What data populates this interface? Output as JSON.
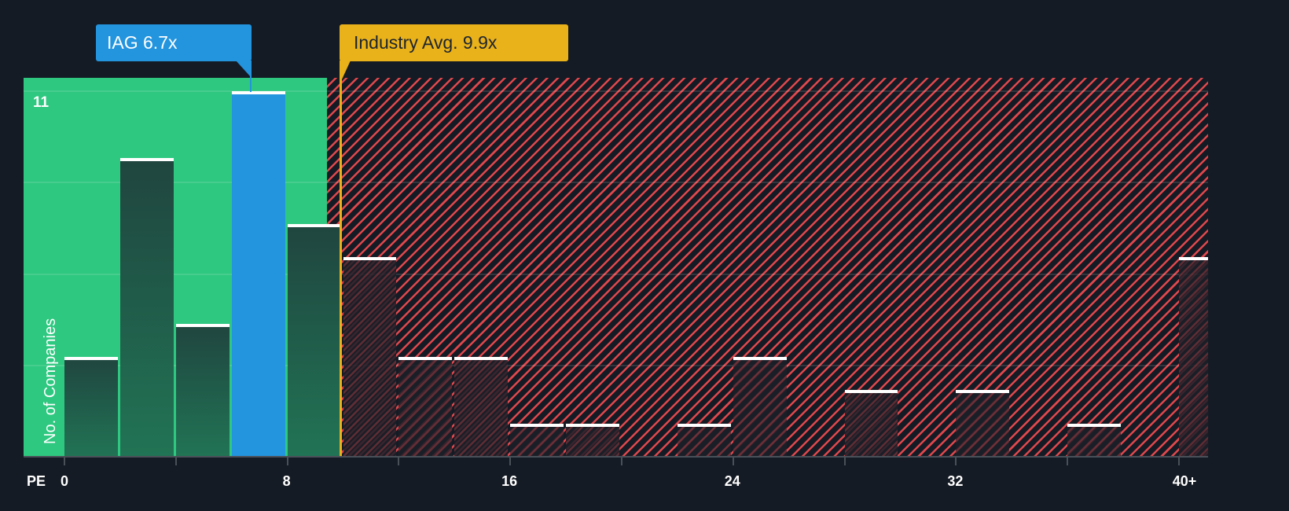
{
  "chart_data": {
    "type": "bar",
    "title": "",
    "xlabel": "PE",
    "ylabel": "No. of Companies",
    "x_tick_labels": [
      "0",
      "8",
      "16",
      "24",
      "32",
      "40+"
    ],
    "y_tick_labels": [
      "11"
    ],
    "ylim": [
      0,
      11
    ],
    "bin_width": 2,
    "categories": [
      "0-2",
      "2-4",
      "4-6",
      "6-8",
      "8-10",
      "10-12",
      "12-14",
      "14-16",
      "16-18",
      "18-20",
      "20-22",
      "22-24",
      "24-26",
      "26-28",
      "28-30",
      "30-32",
      "32-34",
      "34-36",
      "36-38",
      "38-40",
      "40+"
    ],
    "values": [
      3,
      9,
      4,
      11,
      7,
      6,
      3,
      3,
      1,
      1,
      0,
      1,
      3,
      0,
      2,
      0,
      2,
      0,
      1,
      0,
      6
    ],
    "highlight_bin": "6-8",
    "annotations": [
      {
        "label": "IAG 6.7x",
        "x": 6.7,
        "color": "#2394de"
      },
      {
        "label": "Industry Avg. 9.9x",
        "x": 9.9,
        "color": "#e9b11a"
      }
    ],
    "zones": [
      {
        "name": "below-average",
        "x_range": [
          -1.45,
          9.45
        ],
        "color": "#2ec880"
      },
      {
        "name": "above-average",
        "x_range": [
          9.45,
          41
        ],
        "color": "#e0474c",
        "pattern": "diagonal-hatch"
      }
    ],
    "grid": true,
    "legend": null
  },
  "labels": {
    "company_callout": "IAG 6.7x",
    "industry_callout": "Industry Avg. 9.9x",
    "y_axis_title": "No. of Companies",
    "y_top_tick": "11",
    "x_axis_title": "PE",
    "x_ticks": [
      "0",
      "8",
      "16",
      "24",
      "32",
      "40+"
    ]
  },
  "colors": {
    "background": "#151b24",
    "green_zone": "#2ec880",
    "red_hatch": "#e0474c",
    "highlight_bar": "#2394de",
    "industry_avg": "#e9b11a"
  }
}
